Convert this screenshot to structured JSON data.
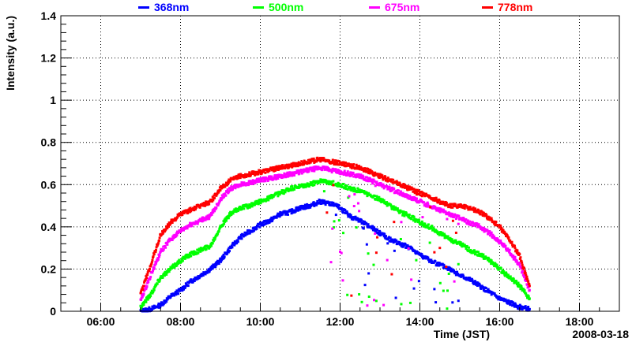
{
  "chart_data": {
    "type": "scatter",
    "title": "",
    "xlabel": "Time (JST)",
    "ylabel": "Intensity (a.u.)",
    "date_label": "2008-03-18",
    "xlim": [
      5,
      19
    ],
    "ylim": [
      0,
      1.4
    ],
    "x_ticks": [
      "06:00",
      "08:00",
      "10:00",
      "12:00",
      "14:00",
      "16:00",
      "18:00"
    ],
    "y_ticks": [
      "0",
      "0.2",
      "0.4",
      "0.6",
      "0.8",
      "1",
      "1.2",
      "1.4"
    ],
    "grid": true,
    "legend_placement": "top",
    "series": [
      {
        "name": "368nm",
        "color": "#0000ff",
        "x": [
          7.0,
          7.25,
          7.5,
          7.75,
          8.0,
          8.25,
          8.5,
          8.75,
          9.0,
          9.25,
          9.5,
          9.75,
          10.0,
          10.25,
          10.5,
          10.75,
          11.0,
          11.25,
          11.5,
          11.75,
          12.0,
          12.25,
          12.5,
          12.75,
          13.0,
          13.25,
          13.5,
          13.75,
          14.0,
          14.25,
          14.5,
          14.75,
          15.0,
          15.25,
          15.5,
          15.75,
          16.0,
          16.25,
          16.5,
          16.75
        ],
        "y": [
          0.0,
          0.01,
          0.03,
          0.07,
          0.1,
          0.14,
          0.17,
          0.2,
          0.24,
          0.3,
          0.35,
          0.38,
          0.41,
          0.43,
          0.46,
          0.47,
          0.49,
          0.5,
          0.52,
          0.51,
          0.49,
          0.45,
          0.43,
          0.4,
          0.37,
          0.34,
          0.32,
          0.3,
          0.27,
          0.24,
          0.22,
          0.2,
          0.17,
          0.15,
          0.12,
          0.09,
          0.06,
          0.04,
          0.02,
          0.01
        ]
      },
      {
        "name": "500nm",
        "color": "#00ff00",
        "x": [
          7.0,
          7.25,
          7.5,
          7.75,
          8.0,
          8.25,
          8.5,
          8.75,
          9.0,
          9.25,
          9.5,
          9.75,
          10.0,
          10.25,
          10.5,
          10.75,
          11.0,
          11.25,
          11.5,
          11.75,
          12.0,
          12.25,
          12.5,
          12.75,
          13.0,
          13.25,
          13.5,
          13.75,
          14.0,
          14.25,
          14.5,
          14.75,
          15.0,
          15.25,
          15.5,
          15.75,
          16.0,
          16.25,
          16.5,
          16.75
        ],
        "y": [
          0.02,
          0.08,
          0.16,
          0.2,
          0.24,
          0.27,
          0.29,
          0.31,
          0.4,
          0.46,
          0.49,
          0.5,
          0.52,
          0.54,
          0.56,
          0.58,
          0.59,
          0.6,
          0.62,
          0.61,
          0.6,
          0.58,
          0.57,
          0.55,
          0.53,
          0.5,
          0.47,
          0.45,
          0.42,
          0.4,
          0.37,
          0.34,
          0.32,
          0.29,
          0.27,
          0.24,
          0.2,
          0.16,
          0.12,
          0.06
        ]
      },
      {
        "name": "675nm",
        "color": "#ff00ff",
        "x": [
          7.0,
          7.25,
          7.5,
          7.75,
          8.0,
          8.25,
          8.5,
          8.75,
          9.0,
          9.25,
          9.5,
          9.75,
          10.0,
          10.25,
          10.5,
          10.75,
          11.0,
          11.25,
          11.5,
          11.75,
          12.0,
          12.25,
          12.5,
          12.75,
          13.0,
          13.25,
          13.5,
          13.75,
          14.0,
          14.25,
          14.5,
          14.75,
          15.0,
          15.25,
          15.5,
          15.75,
          16.0,
          16.25,
          16.5,
          16.75
        ],
        "y": [
          0.05,
          0.17,
          0.28,
          0.34,
          0.38,
          0.41,
          0.43,
          0.45,
          0.53,
          0.58,
          0.6,
          0.61,
          0.62,
          0.63,
          0.64,
          0.65,
          0.66,
          0.67,
          0.68,
          0.67,
          0.66,
          0.65,
          0.64,
          0.62,
          0.6,
          0.58,
          0.56,
          0.54,
          0.52,
          0.5,
          0.48,
          0.46,
          0.44,
          0.42,
          0.4,
          0.37,
          0.33,
          0.28,
          0.22,
          0.1
        ]
      },
      {
        "name": "778nm",
        "color": "#ff0000",
        "x": [
          7.0,
          7.25,
          7.5,
          7.75,
          8.0,
          8.25,
          8.5,
          8.75,
          9.0,
          9.25,
          9.5,
          9.75,
          10.0,
          10.25,
          10.5,
          10.75,
          11.0,
          11.25,
          11.5,
          11.75,
          12.0,
          12.25,
          12.5,
          12.75,
          13.0,
          13.25,
          13.5,
          13.75,
          14.0,
          14.25,
          14.5,
          14.75,
          15.0,
          15.25,
          15.5,
          15.75,
          16.0,
          16.25,
          16.5,
          16.75
        ],
        "y": [
          0.08,
          0.22,
          0.36,
          0.42,
          0.46,
          0.48,
          0.5,
          0.52,
          0.58,
          0.62,
          0.64,
          0.65,
          0.66,
          0.67,
          0.68,
          0.69,
          0.7,
          0.71,
          0.72,
          0.71,
          0.7,
          0.69,
          0.68,
          0.66,
          0.64,
          0.62,
          0.6,
          0.58,
          0.56,
          0.54,
          0.52,
          0.5,
          0.5,
          0.49,
          0.47,
          0.44,
          0.4,
          0.34,
          0.26,
          0.12
        ]
      }
    ]
  }
}
